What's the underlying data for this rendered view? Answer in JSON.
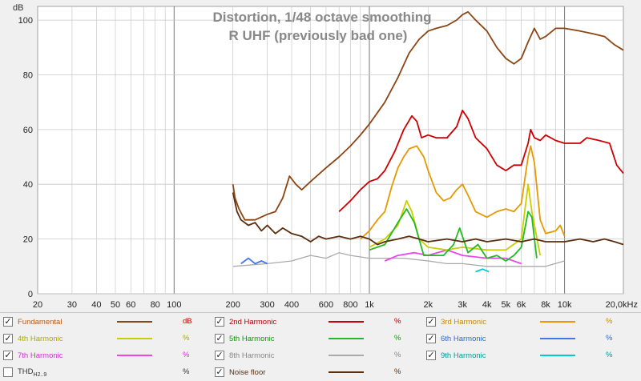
{
  "chart_data": {
    "type": "line",
    "title": "Distortion, 1/48 octave smoothing",
    "subtitle": "R UHF (previously bad one)",
    "ylabel": "dB",
    "x_scale": "log",
    "xlim": [
      20,
      20000
    ],
    "ylim": [
      0,
      105
    ],
    "grid": true,
    "legend_position": "bottom",
    "x_ticks": [
      {
        "value": 20,
        "label": "20"
      },
      {
        "value": 30,
        "label": "30"
      },
      {
        "value": 40,
        "label": "40"
      },
      {
        "value": 50,
        "label": "50"
      },
      {
        "value": 60,
        "label": "60"
      },
      {
        "value": 80,
        "label": "80"
      },
      {
        "value": 100,
        "label": "100"
      },
      {
        "value": 200,
        "label": "200"
      },
      {
        "value": 300,
        "label": "300"
      },
      {
        "value": 400,
        "label": "400"
      },
      {
        "value": 600,
        "label": "600"
      },
      {
        "value": 800,
        "label": "800"
      },
      {
        "value": 1000,
        "label": "1k"
      },
      {
        "value": 2000,
        "label": "2k"
      },
      {
        "value": 3000,
        "label": "3k"
      },
      {
        "value": 4000,
        "label": "4k"
      },
      {
        "value": 5000,
        "label": "5k"
      },
      {
        "value": 6000,
        "label": "6k"
      },
      {
        "value": 8000,
        "label": "8k"
      },
      {
        "value": 10000,
        "label": "10k"
      },
      {
        "value": 20000,
        "label": "20,0kHz"
      }
    ],
    "y_ticks": [
      0,
      20,
      40,
      60,
      80,
      100
    ],
    "series": [
      {
        "name": "Fundamental",
        "unit": "dB",
        "color": "#8b4513",
        "checked": true,
        "points": [
          [
            200,
            40
          ],
          [
            205,
            35
          ],
          [
            215,
            31
          ],
          [
            230,
            27
          ],
          [
            260,
            27
          ],
          [
            300,
            29
          ],
          [
            330,
            30
          ],
          [
            360,
            35
          ],
          [
            390,
            43
          ],
          [
            420,
            40
          ],
          [
            450,
            38
          ],
          [
            500,
            41
          ],
          [
            600,
            46
          ],
          [
            700,
            50
          ],
          [
            800,
            54
          ],
          [
            900,
            58
          ],
          [
            1000,
            62
          ],
          [
            1200,
            70
          ],
          [
            1400,
            79
          ],
          [
            1600,
            88
          ],
          [
            1800,
            93
          ],
          [
            2000,
            96
          ],
          [
            2200,
            97
          ],
          [
            2500,
            98
          ],
          [
            2800,
            100
          ],
          [
            3000,
            102
          ],
          [
            3200,
            103
          ],
          [
            3500,
            100
          ],
          [
            4000,
            96
          ],
          [
            4500,
            90
          ],
          [
            5000,
            86
          ],
          [
            5500,
            84
          ],
          [
            6000,
            86
          ],
          [
            6500,
            92
          ],
          [
            7000,
            97
          ],
          [
            7500,
            93
          ],
          [
            8000,
            94
          ],
          [
            9000,
            97
          ],
          [
            10000,
            97
          ],
          [
            12000,
            96
          ],
          [
            14000,
            95
          ],
          [
            16000,
            94
          ],
          [
            18000,
            91
          ],
          [
            20000,
            89
          ]
        ]
      },
      {
        "name": "2nd Harmonic",
        "unit": "%",
        "color": "#cc0000",
        "checked": true,
        "points": [
          [
            700,
            30
          ],
          [
            800,
            34
          ],
          [
            900,
            38
          ],
          [
            1000,
            41
          ],
          [
            1100,
            42
          ],
          [
            1200,
            45
          ],
          [
            1350,
            52
          ],
          [
            1500,
            60
          ],
          [
            1650,
            65
          ],
          [
            1750,
            63
          ],
          [
            1850,
            57
          ],
          [
            2000,
            58
          ],
          [
            2200,
            57
          ],
          [
            2500,
            57
          ],
          [
            2800,
            61
          ],
          [
            3000,
            67
          ],
          [
            3200,
            64
          ],
          [
            3500,
            57
          ],
          [
            4000,
            53
          ],
          [
            4500,
            47
          ],
          [
            5000,
            45
          ],
          [
            5500,
            47
          ],
          [
            6000,
            47
          ],
          [
            6500,
            55
          ],
          [
            6700,
            60
          ],
          [
            7000,
            57
          ],
          [
            7500,
            56
          ],
          [
            8000,
            58
          ],
          [
            9000,
            56
          ],
          [
            10000,
            55
          ],
          [
            12000,
            55
          ],
          [
            13000,
            57
          ],
          [
            15000,
            56
          ],
          [
            17000,
            55
          ],
          [
            18500,
            47
          ],
          [
            20000,
            44
          ]
        ]
      },
      {
        "name": "3rd Harmonic",
        "unit": "%",
        "color": "#e69900",
        "checked": true,
        "points": [
          [
            900,
            20
          ],
          [
            1000,
            23
          ],
          [
            1100,
            27
          ],
          [
            1200,
            30
          ],
          [
            1300,
            39
          ],
          [
            1400,
            46
          ],
          [
            1500,
            50
          ],
          [
            1600,
            53
          ],
          [
            1750,
            54
          ],
          [
            1900,
            50
          ],
          [
            2000,
            45
          ],
          [
            2200,
            37
          ],
          [
            2400,
            34
          ],
          [
            2600,
            35
          ],
          [
            2800,
            38
          ],
          [
            3000,
            40
          ],
          [
            3200,
            36
          ],
          [
            3500,
            30
          ],
          [
            4000,
            28
          ],
          [
            4500,
            30
          ],
          [
            5000,
            31
          ],
          [
            5500,
            30
          ],
          [
            6000,
            33
          ],
          [
            6500,
            50
          ],
          [
            6700,
            54
          ],
          [
            7000,
            48
          ],
          [
            7500,
            27
          ],
          [
            8000,
            22
          ],
          [
            9000,
            23
          ],
          [
            9500,
            25
          ],
          [
            10000,
            21
          ]
        ]
      },
      {
        "name": "4th Harmonic",
        "unit": "%",
        "color": "#cccc00",
        "checked": true,
        "points": [
          [
            1000,
            17
          ],
          [
            1200,
            20
          ],
          [
            1400,
            25
          ],
          [
            1550,
            34
          ],
          [
            1650,
            30
          ],
          [
            1800,
            20
          ],
          [
            2000,
            17
          ],
          [
            2500,
            16
          ],
          [
            3000,
            17
          ],
          [
            4000,
            16
          ],
          [
            5000,
            16
          ],
          [
            6000,
            20
          ],
          [
            6500,
            40
          ],
          [
            6800,
            30
          ],
          [
            7500,
            14
          ]
        ]
      },
      {
        "name": "5th Harmonic",
        "unit": "%",
        "color": "#22bb22",
        "checked": true,
        "points": [
          [
            1000,
            16
          ],
          [
            1200,
            18
          ],
          [
            1400,
            26
          ],
          [
            1550,
            31
          ],
          [
            1700,
            26
          ],
          [
            1900,
            14
          ],
          [
            2100,
            14
          ],
          [
            2400,
            14
          ],
          [
            2700,
            18
          ],
          [
            2900,
            24
          ],
          [
            3200,
            15
          ],
          [
            3600,
            18
          ],
          [
            4000,
            13
          ],
          [
            4500,
            14
          ],
          [
            5000,
            12
          ],
          [
            5500,
            14
          ],
          [
            6000,
            17
          ],
          [
            6500,
            30
          ],
          [
            6800,
            28
          ],
          [
            7200,
            13
          ]
        ]
      },
      {
        "name": "6th Harmonic",
        "unit": "%",
        "color": "#4477ee",
        "checked": true,
        "points": [
          [
            220,
            11
          ],
          [
            240,
            13
          ],
          [
            260,
            11
          ],
          [
            280,
            12
          ],
          [
            300,
            11
          ]
        ]
      },
      {
        "name": "7th Harmonic",
        "unit": "%",
        "color": "#ee44ee",
        "checked": true,
        "points": [
          [
            1200,
            12
          ],
          [
            1400,
            14
          ],
          [
            1700,
            15
          ],
          [
            2000,
            14
          ],
          [
            2500,
            16
          ],
          [
            3000,
            14
          ],
          [
            4000,
            13
          ],
          [
            5000,
            13
          ],
          [
            6000,
            11
          ]
        ]
      },
      {
        "name": "8th Harmonic",
        "unit": "%",
        "color": "#aaaaaa",
        "checked": true,
        "points": [
          [
            200,
            10
          ],
          [
            300,
            11
          ],
          [
            400,
            12
          ],
          [
            500,
            14
          ],
          [
            600,
            13
          ],
          [
            700,
            15
          ],
          [
            800,
            14
          ],
          [
            1000,
            13
          ],
          [
            1500,
            13
          ],
          [
            2000,
            12
          ],
          [
            2500,
            11
          ],
          [
            3000,
            11
          ],
          [
            4000,
            10
          ],
          [
            5000,
            10
          ],
          [
            6000,
            10
          ],
          [
            8000,
            10
          ],
          [
            10000,
            12
          ]
        ]
      },
      {
        "name": "9th Harmonic",
        "unit": "%",
        "color": "#00cccc",
        "checked": true,
        "points": [
          [
            3500,
            8
          ],
          [
            3800,
            9
          ],
          [
            4100,
            8
          ]
        ]
      },
      {
        "name": "THD",
        "name_sub": "H2..9",
        "unit": "%",
        "color": "#f0f0f0",
        "checked": false,
        "points": []
      },
      {
        "name": "Noise floor",
        "unit": "%",
        "color": "#5a2e0e",
        "checked": true,
        "points": [
          [
            200,
            37
          ],
          [
            210,
            30
          ],
          [
            220,
            27
          ],
          [
            240,
            25
          ],
          [
            260,
            26
          ],
          [
            280,
            23
          ],
          [
            300,
            25
          ],
          [
            330,
            22
          ],
          [
            360,
            24
          ],
          [
            400,
            22
          ],
          [
            450,
            21
          ],
          [
            500,
            19
          ],
          [
            550,
            21
          ],
          [
            600,
            20
          ],
          [
            700,
            21
          ],
          [
            800,
            20
          ],
          [
            900,
            21
          ],
          [
            1000,
            20
          ],
          [
            1100,
            18
          ],
          [
            1200,
            19
          ],
          [
            1400,
            20
          ],
          [
            1600,
            21
          ],
          [
            1800,
            20
          ],
          [
            2000,
            19
          ],
          [
            2500,
            20
          ],
          [
            3000,
            19
          ],
          [
            3500,
            20
          ],
          [
            4000,
            19
          ],
          [
            5000,
            20
          ],
          [
            6000,
            19
          ],
          [
            7000,
            20
          ],
          [
            8000,
            19
          ],
          [
            10000,
            19
          ],
          [
            12000,
            20
          ],
          [
            14000,
            19
          ],
          [
            16000,
            20
          ],
          [
            18000,
            19
          ],
          [
            20000,
            18
          ]
        ]
      }
    ]
  }
}
